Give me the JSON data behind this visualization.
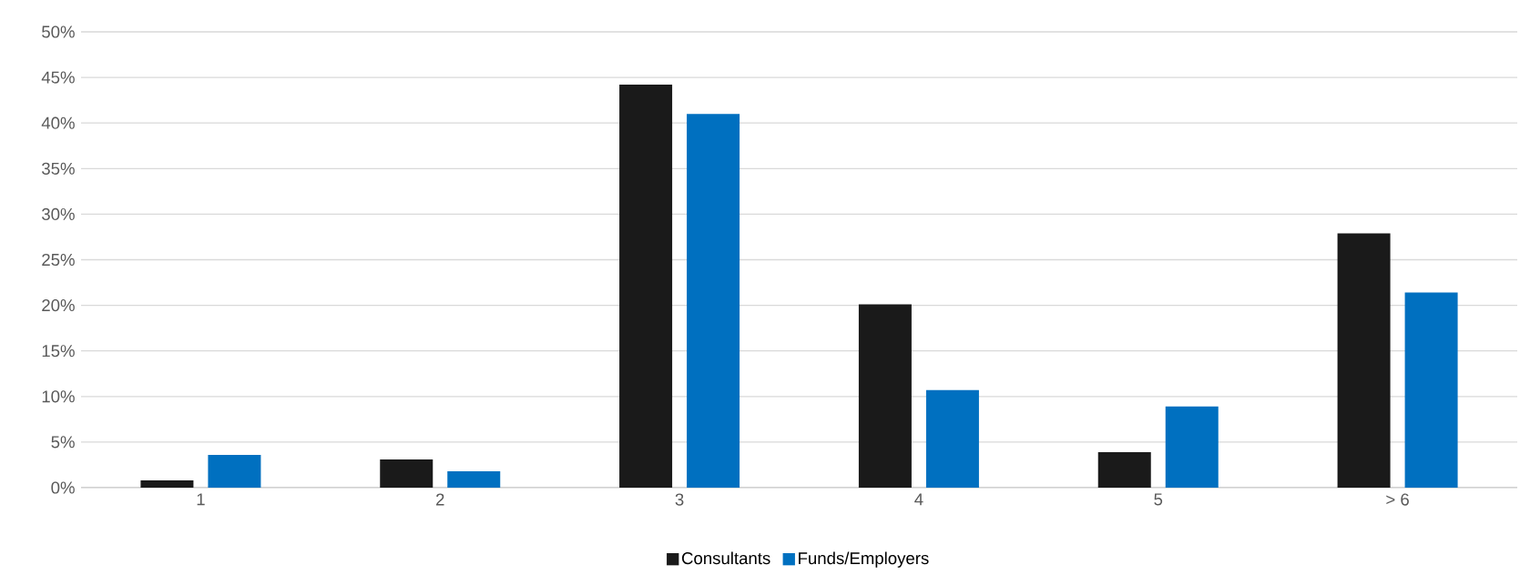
{
  "chart_data": {
    "type": "bar",
    "categories": [
      "1",
      "2",
      "3",
      "4",
      "5",
      "> 6"
    ],
    "series": [
      {
        "name": "Consultants",
        "color": "#1a1a1a",
        "values": [
          0.8,
          3.1,
          44.2,
          20.1,
          3.9,
          27.9
        ]
      },
      {
        "name": "Funds/Employers",
        "color": "#0070c0",
        "values": [
          3.6,
          1.8,
          41.0,
          10.7,
          8.9,
          21.4
        ]
      }
    ],
    "ylim": [
      0,
      50
    ],
    "yticks": [
      {
        "value": 0,
        "label": "0%"
      },
      {
        "value": 5,
        "label": "5%"
      },
      {
        "value": 10,
        "label": "10%"
      },
      {
        "value": 15,
        "label": "15%"
      },
      {
        "value": 20,
        "label": "20%"
      },
      {
        "value": 25,
        "label": "25%"
      },
      {
        "value": 30,
        "label": "30%"
      },
      {
        "value": 35,
        "label": "35%"
      },
      {
        "value": 40,
        "label": "40%"
      },
      {
        "value": 45,
        "label": "45%"
      },
      {
        "value": 50,
        "label": "50%"
      }
    ],
    "grid": "y",
    "legend": "bottom"
  }
}
